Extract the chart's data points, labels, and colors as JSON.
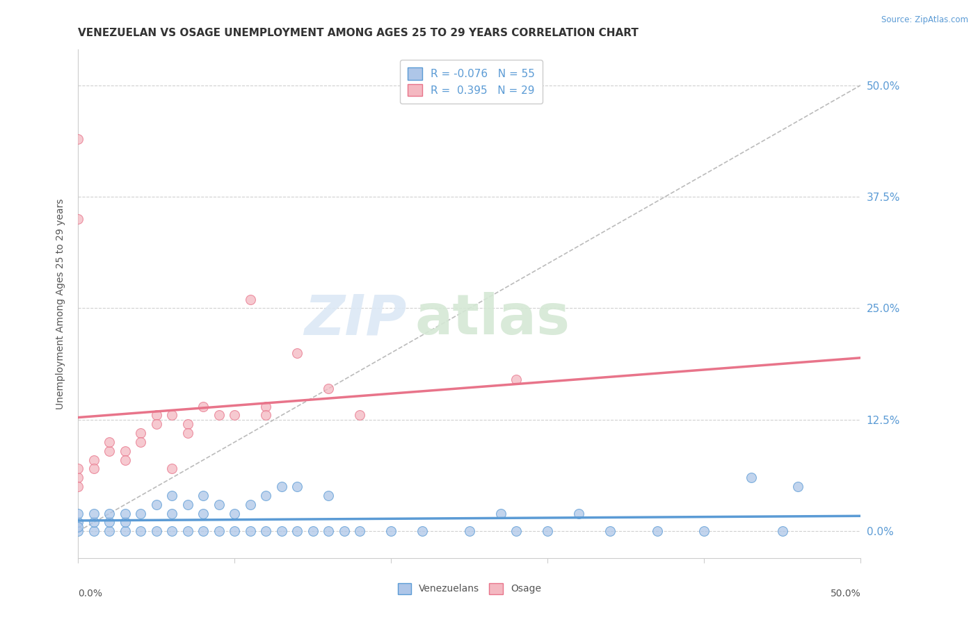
{
  "title": "VENEZUELAN VS OSAGE UNEMPLOYMENT AMONG AGES 25 TO 29 YEARS CORRELATION CHART",
  "source": "Source: ZipAtlas.com",
  "ylabel": "Unemployment Among Ages 25 to 29 years",
  "yticks": [
    "0.0%",
    "12.5%",
    "25.0%",
    "37.5%",
    "50.0%"
  ],
  "ytick_vals": [
    0.0,
    0.125,
    0.25,
    0.375,
    0.5
  ],
  "xlim": [
    0.0,
    0.5
  ],
  "ylim": [
    -0.03,
    0.54
  ],
  "legend_R_N": [
    {
      "R": "-0.076",
      "N": "55",
      "color": "#aec6e8",
      "edge": "#5b9bd5"
    },
    {
      "R": "0.395",
      "N": "29",
      "color": "#f4b8c1",
      "edge": "#e8748a"
    }
  ],
  "venezuelan_color": "#aec6e8",
  "osage_color": "#f4b8c1",
  "venezuelan_line_color": "#5b9bd5",
  "osage_line_color": "#e8748a",
  "venezuelan_scatter": [
    [
      0.0,
      0.0
    ],
    [
      0.0,
      0.01
    ],
    [
      0.0,
      0.02
    ],
    [
      0.0,
      0.005
    ],
    [
      0.01,
      0.0
    ],
    [
      0.01,
      0.01
    ],
    [
      0.01,
      0.02
    ],
    [
      0.02,
      0.0
    ],
    [
      0.02,
      0.01
    ],
    [
      0.02,
      0.02
    ],
    [
      0.03,
      0.0
    ],
    [
      0.03,
      0.01
    ],
    [
      0.03,
      0.02
    ],
    [
      0.04,
      0.0
    ],
    [
      0.04,
      0.02
    ],
    [
      0.05,
      0.0
    ],
    [
      0.05,
      0.03
    ],
    [
      0.06,
      0.0
    ],
    [
      0.06,
      0.02
    ],
    [
      0.06,
      0.04
    ],
    [
      0.07,
      0.0
    ],
    [
      0.07,
      0.03
    ],
    [
      0.08,
      0.0
    ],
    [
      0.08,
      0.02
    ],
    [
      0.08,
      0.04
    ],
    [
      0.09,
      0.0
    ],
    [
      0.09,
      0.03
    ],
    [
      0.1,
      0.0
    ],
    [
      0.1,
      0.02
    ],
    [
      0.11,
      0.0
    ],
    [
      0.11,
      0.03
    ],
    [
      0.12,
      0.0
    ],
    [
      0.12,
      0.04
    ],
    [
      0.13,
      0.0
    ],
    [
      0.13,
      0.05
    ],
    [
      0.14,
      0.0
    ],
    [
      0.14,
      0.05
    ],
    [
      0.15,
      0.0
    ],
    [
      0.16,
      0.0
    ],
    [
      0.16,
      0.04
    ],
    [
      0.17,
      0.0
    ],
    [
      0.18,
      0.0
    ],
    [
      0.2,
      0.0
    ],
    [
      0.22,
      0.0
    ],
    [
      0.25,
      0.0
    ],
    [
      0.27,
      0.02
    ],
    [
      0.28,
      0.0
    ],
    [
      0.3,
      0.0
    ],
    [
      0.32,
      0.02
    ],
    [
      0.34,
      0.0
    ],
    [
      0.37,
      0.0
    ],
    [
      0.4,
      0.0
    ],
    [
      0.43,
      0.06
    ],
    [
      0.45,
      0.0
    ],
    [
      0.46,
      0.05
    ]
  ],
  "osage_scatter": [
    [
      0.0,
      0.44
    ],
    [
      0.0,
      0.35
    ],
    [
      0.0,
      0.06
    ],
    [
      0.0,
      0.07
    ],
    [
      0.0,
      0.05
    ],
    [
      0.01,
      0.08
    ],
    [
      0.01,
      0.07
    ],
    [
      0.02,
      0.09
    ],
    [
      0.02,
      0.1
    ],
    [
      0.03,
      0.09
    ],
    [
      0.03,
      0.08
    ],
    [
      0.04,
      0.11
    ],
    [
      0.04,
      0.1
    ],
    [
      0.05,
      0.13
    ],
    [
      0.05,
      0.12
    ],
    [
      0.06,
      0.13
    ],
    [
      0.06,
      0.07
    ],
    [
      0.07,
      0.12
    ],
    [
      0.07,
      0.11
    ],
    [
      0.08,
      0.14
    ],
    [
      0.09,
      0.13
    ],
    [
      0.1,
      0.13
    ],
    [
      0.11,
      0.26
    ],
    [
      0.12,
      0.14
    ],
    [
      0.12,
      0.13
    ],
    [
      0.14,
      0.2
    ],
    [
      0.16,
      0.16
    ],
    [
      0.18,
      0.13
    ],
    [
      0.28,
      0.17
    ]
  ],
  "diag_line": [
    [
      0.0,
      0.0
    ],
    [
      0.5,
      0.5
    ]
  ],
  "grid_color": "#d0d0d0",
  "spine_color": "#cccccc",
  "watermark_zip_color": "#dce8f5",
  "watermark_atlas_color": "#d5e8d5"
}
